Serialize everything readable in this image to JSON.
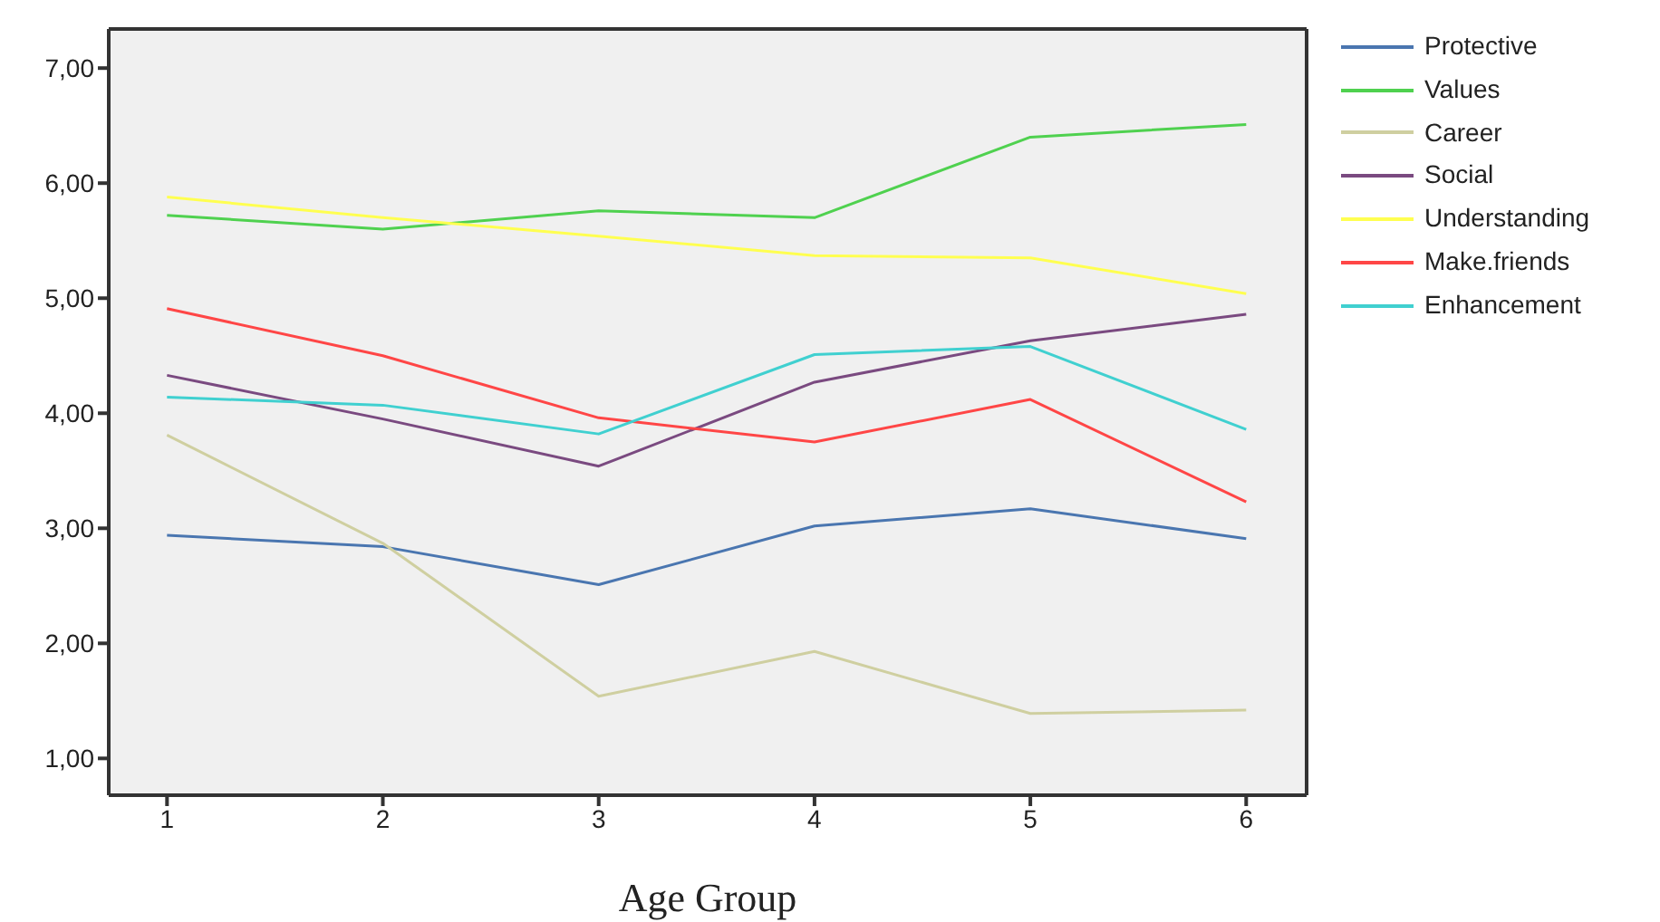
{
  "chart_data": {
    "type": "line",
    "xlabel": "Age Group",
    "x": [
      1,
      2,
      3,
      4,
      5,
      6
    ],
    "series": [
      {
        "name": "Protective",
        "color": "#4a76b0",
        "values": [
          2.94,
          2.84,
          2.51,
          3.02,
          3.17,
          2.91
        ]
      },
      {
        "name": "Values",
        "color": "#4fd14f",
        "values": [
          5.72,
          5.6,
          5.76,
          5.7,
          6.4,
          6.51
        ]
      },
      {
        "name": "Career",
        "color": "#cfcfa0",
        "values": [
          3.81,
          2.87,
          1.54,
          1.93,
          1.39,
          1.42
        ]
      },
      {
        "name": "Social",
        "color": "#7a4a80",
        "values": [
          4.33,
          3.95,
          3.54,
          4.27,
          4.63,
          4.86
        ]
      },
      {
        "name": "Understanding",
        "color": "#ffff50",
        "values": [
          5.88,
          5.7,
          5.54,
          5.37,
          5.35,
          5.04
        ]
      },
      {
        "name": "Make.friends",
        "color": "#ff4646",
        "values": [
          4.91,
          4.5,
          3.96,
          3.75,
          4.12,
          3.23
        ]
      },
      {
        "name": "Enhancement",
        "color": "#40d0d0",
        "values": [
          4.14,
          4.07,
          3.82,
          4.51,
          4.58,
          3.86
        ]
      }
    ],
    "xlim": [
      0.73,
      6.28
    ],
    "xticks": [
      1,
      2,
      3,
      4,
      5,
      6
    ],
    "ylim": [
      0.68,
      7.34
    ],
    "yticks": [
      {
        "value": 1,
        "label": "1,00"
      },
      {
        "value": 2,
        "label": "2,00"
      },
      {
        "value": 3,
        "label": "3,00"
      },
      {
        "value": 4,
        "label": "4,00"
      },
      {
        "value": 5,
        "label": "5,00"
      },
      {
        "value": 6,
        "label": "6,00"
      },
      {
        "value": 7,
        "label": "7,00"
      }
    ],
    "grid": false,
    "legend": "top right",
    "marker": "none",
    "line_style": "solid"
  }
}
